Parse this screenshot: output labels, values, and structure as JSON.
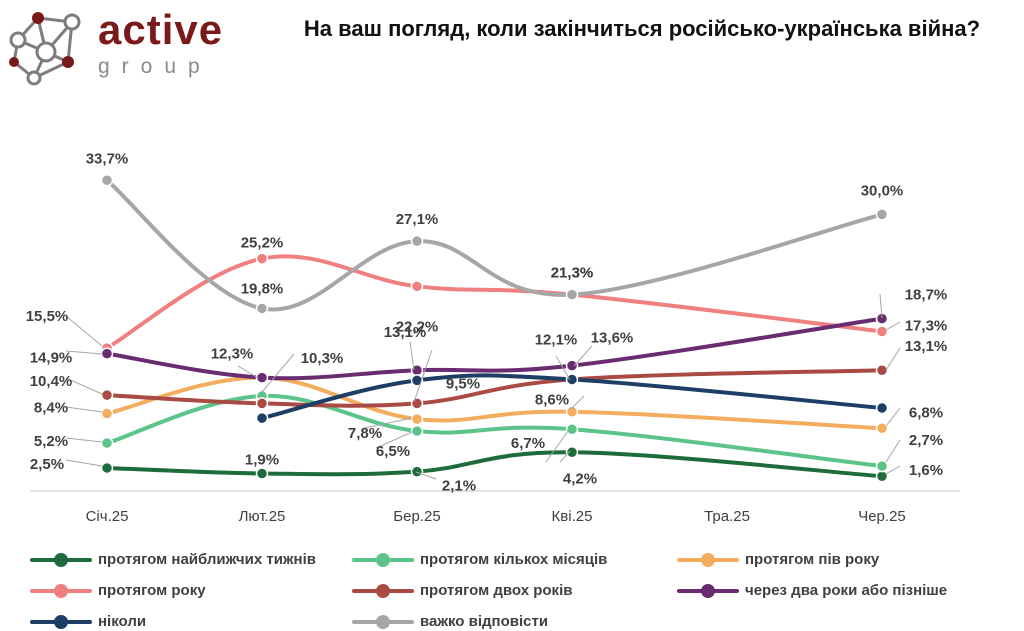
{
  "logo": {
    "word1": "active",
    "word2": "group"
  },
  "chart_data": {
    "type": "line",
    "title": "На ваш погляд, коли закінчиться російсько-українська війна?",
    "categories": [
      "Січ.25",
      "Лют.25",
      "Бер.25",
      "Кві.25",
      "Тра.25",
      "Чер.25"
    ],
    "xlabel": "",
    "ylabel": "",
    "ylim": [
      0,
      36
    ],
    "grid": false,
    "legend_position": "bottom",
    "series": [
      {
        "name": "протягом найближчих тижнів",
        "color": "#1e6b3c",
        "values": [
          2.5,
          1.9,
          2.1,
          4.2,
          null,
          1.6
        ],
        "labels": [
          "2,5%",
          "1,9%",
          "2,1%",
          "4,2%",
          null,
          "1,6%"
        ]
      },
      {
        "name": "протягом кількох місяців",
        "color": "#5cc489",
        "values": [
          5.2,
          10.3,
          6.5,
          6.7,
          null,
          2.7
        ],
        "labels": [
          "5,2%",
          "10,3%",
          "6,5%",
          "6,7%",
          null,
          "2,7%"
        ]
      },
      {
        "name": "протягом пів року",
        "color": "#f4ac5f",
        "values": [
          8.4,
          12.3,
          7.8,
          8.6,
          null,
          6.8
        ],
        "labels": [
          "8,4%",
          "12,3%",
          "7,8%",
          "8,6%",
          null,
          "6,8%"
        ]
      },
      {
        "name": "протягом року",
        "color": "#f08080",
        "values": [
          15.5,
          25.2,
          22.2,
          21.3,
          null,
          17.3
        ],
        "labels": [
          "15,5%",
          "25,2%",
          "22,2%",
          "21,3%",
          null,
          "17,3%"
        ]
      },
      {
        "name": "протягом двох років",
        "color": "#a94a44",
        "values": [
          10.4,
          9.5,
          9.5,
          12.1,
          null,
          13.1
        ],
        "labels": [
          "10,4%",
          null,
          "9,5%",
          "12,1%",
          null,
          "13,1%"
        ]
      },
      {
        "name": "через два роки або пізніше",
        "color": "#6a2c70",
        "values": [
          14.9,
          12.3,
          13.1,
          13.6,
          null,
          18.7
        ],
        "labels": [
          "14,9%",
          null,
          "13,1%",
          "13,6%",
          null,
          "18,7%"
        ]
      },
      {
        "name": "ніколи",
        "color": "#1f3e66",
        "values": [
          null,
          7.9,
          12.0,
          12.1,
          null,
          9.0
        ],
        "labels": [
          null,
          null,
          null,
          null,
          null,
          null
        ]
      },
      {
        "name": "важко відповісти",
        "color": "#a6a6a6",
        "values": [
          33.7,
          19.8,
          27.1,
          21.3,
          null,
          30.0
        ],
        "labels": [
          "33,7%",
          "19,8%",
          "27,1%",
          "21,3%",
          null,
          "30,0%"
        ]
      }
    ]
  }
}
